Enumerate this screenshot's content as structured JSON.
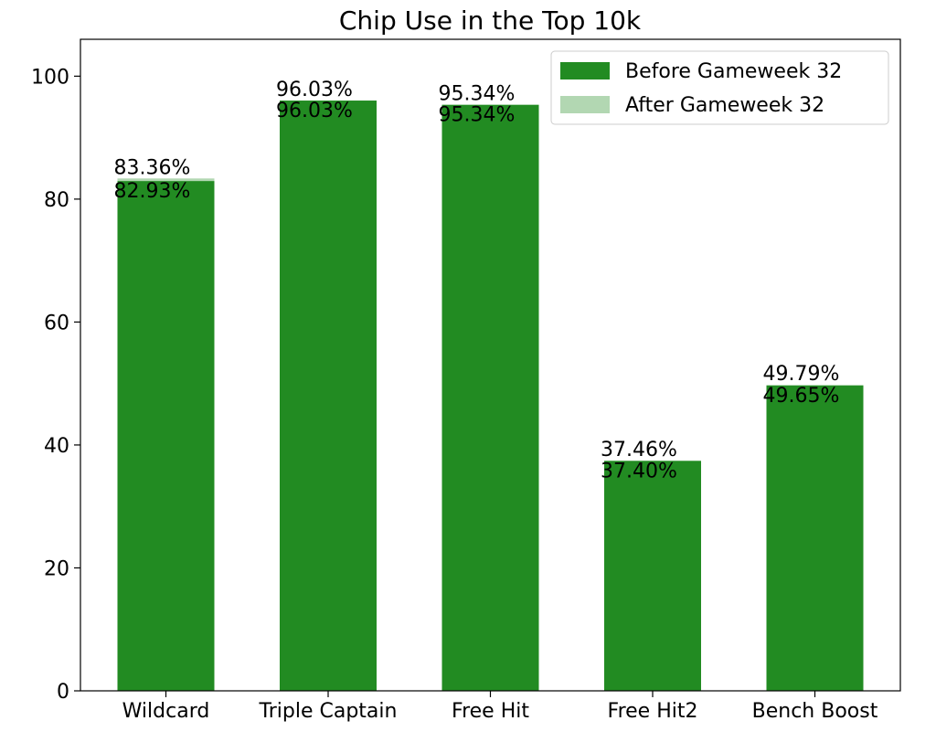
{
  "chart_data": {
    "type": "bar",
    "title": "Chip Use in the Top 10k",
    "xlabel": "",
    "ylabel": "",
    "categories": [
      "Wildcard",
      "Triple Captain",
      "Free Hit",
      "Free Hit2",
      "Bench Boost"
    ],
    "series": [
      {
        "name": "Before Gameweek 32",
        "values": [
          82.93,
          96.03,
          95.34,
          37.4,
          49.65
        ],
        "labels": [
          "82.93%",
          "96.03%",
          "95.34%",
          "37.40%",
          "49.65%"
        ],
        "color": "#228b22",
        "opacity": 1.0
      },
      {
        "name": "After Gameweek 32",
        "values": [
          83.36,
          96.03,
          95.34,
          37.46,
          49.79
        ],
        "labels": [
          "83.36%",
          "96.03%",
          "95.34%",
          "37.46%",
          "49.79%"
        ],
        "color": "#228b22",
        "opacity": 0.35
      }
    ],
    "ylim": [
      0,
      106
    ],
    "yticks": [
      "0",
      "20",
      "40",
      "60",
      "80",
      "100"
    ],
    "grid": false,
    "legend_position": "top-right"
  }
}
